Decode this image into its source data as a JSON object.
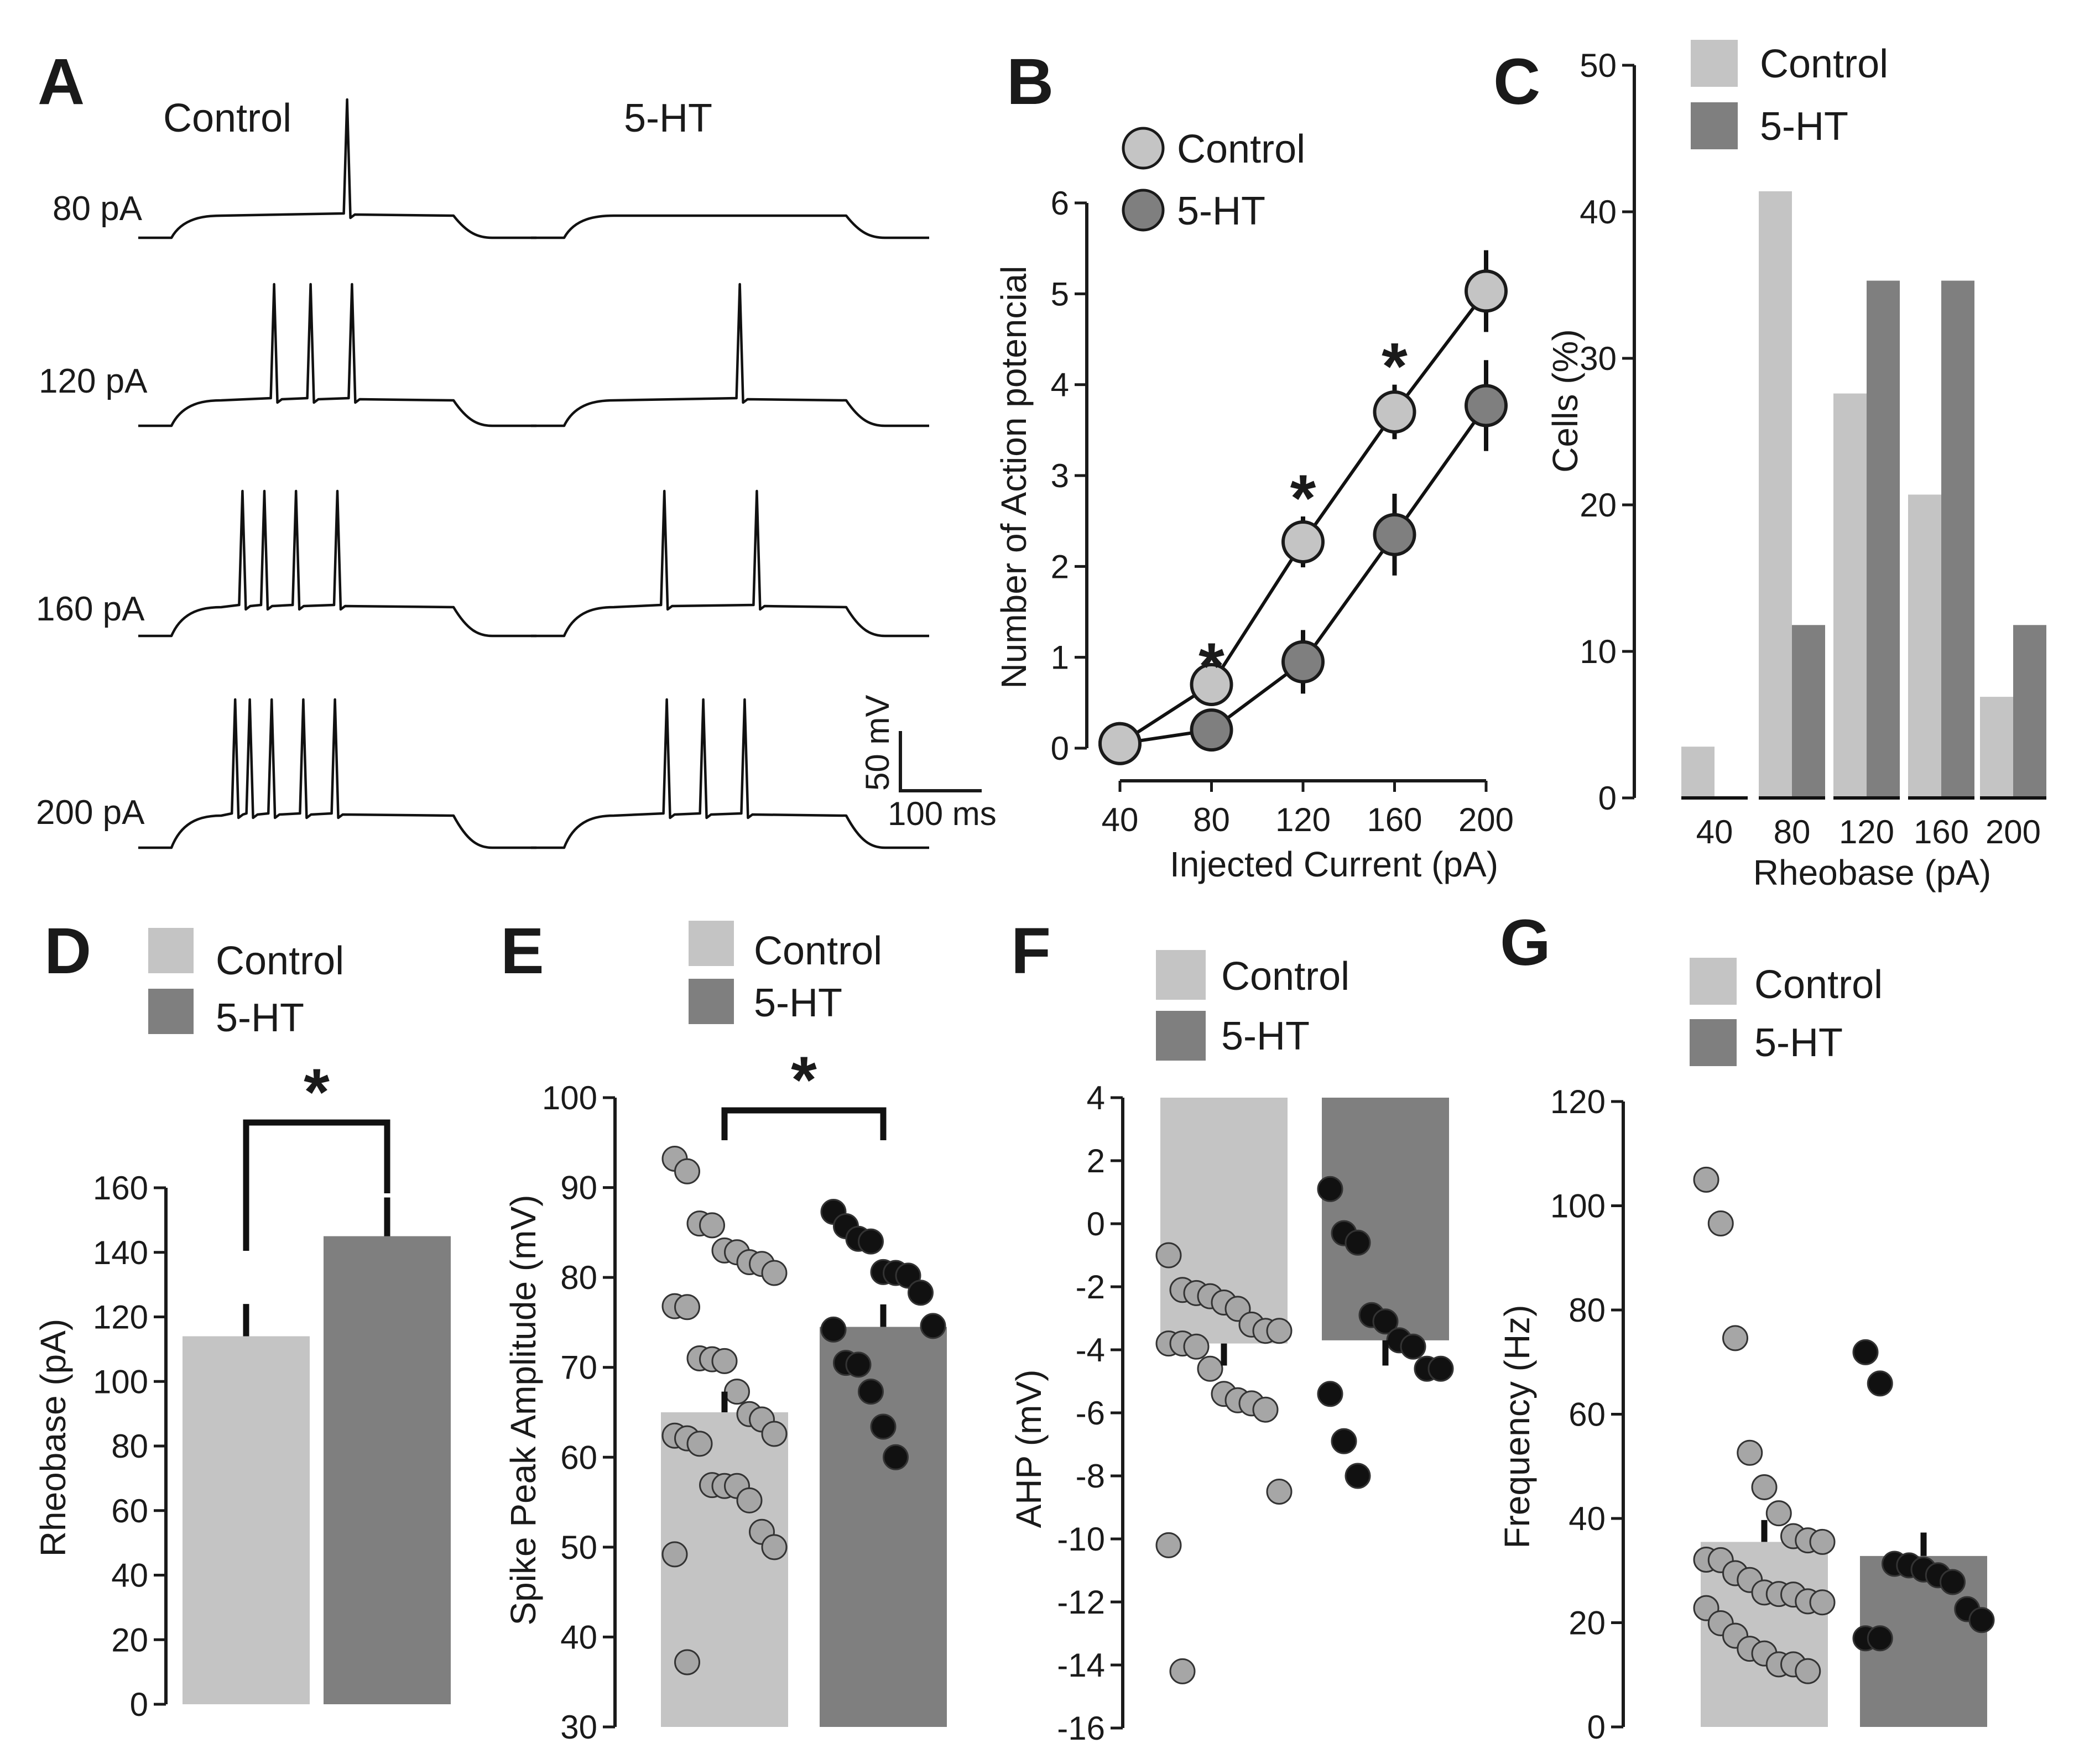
{
  "colors": {
    "control": "#c4c4c4",
    "treatment": "#7f7f7f",
    "control_dot": "#a6a6a6",
    "treatment_dot": "#111111",
    "axis": "#1a1a1a"
  },
  "legend": {
    "control": "Control",
    "treatment": "5-HT"
  },
  "chart_data": [
    {
      "panel": "A",
      "type": "traces",
      "column_titles": [
        "Control",
        "5-HT"
      ],
      "rows": [
        {
          "label": "80 pA",
          "control_spikes": 1,
          "treatment_spikes": 0
        },
        {
          "label": "120 pA",
          "control_spikes": 3,
          "treatment_spikes": 1
        },
        {
          "label": "160 pA",
          "control_spikes": 4,
          "treatment_spikes": 2
        },
        {
          "label": "200 pA",
          "control_spikes": 5,
          "treatment_spikes": 3
        }
      ],
      "scalebar": {
        "voltage": "50 mV",
        "time": "100 ms"
      }
    },
    {
      "panel": "B",
      "type": "line",
      "x": [
        40,
        80,
        120,
        160,
        200
      ],
      "xlabel": "Injected Current (pA)",
      "ylabel": "Number of Action potencial",
      "ylim": [
        0,
        6
      ],
      "yticks": [
        0,
        1,
        2,
        3,
        4,
        5,
        6
      ],
      "series": [
        {
          "name": "Control",
          "values": [
            0.05,
            0.7,
            2.27,
            3.7,
            5.03
          ],
          "errors": [
            0,
            0,
            0.28,
            0.3,
            0.45
          ]
        },
        {
          "name": "5-HT",
          "values": [
            0.05,
            0.2,
            0.95,
            2.35,
            3.77
          ],
          "errors": [
            0,
            0,
            0.35,
            0.45,
            0.5
          ]
        }
      ],
      "significant_x": [
        80,
        120,
        160
      ],
      "sig_mark": "*"
    },
    {
      "panel": "C",
      "type": "bar",
      "categories": [
        "40",
        "80",
        "120",
        "160",
        "200"
      ],
      "xlabel": "Rheobase (pA)",
      "ylabel": "Cells (%)",
      "ylim": [
        0,
        50
      ],
      "yticks": [
        0,
        10,
        20,
        30,
        40,
        50
      ],
      "series": [
        {
          "name": "Control",
          "values": [
            3.5,
            41.4,
            27.6,
            20.7,
            6.9
          ]
        },
        {
          "name": "5-HT",
          "values": [
            0,
            11.8,
            35.3,
            35.3,
            11.8
          ]
        }
      ]
    },
    {
      "panel": "D",
      "type": "bar",
      "categories": [
        "Control",
        "5-HT"
      ],
      "values": [
        114,
        145
      ],
      "errors": [
        10,
        12
      ],
      "ylabel": "Rheobase (pA)",
      "ylim": [
        0,
        160
      ],
      "yticks": [
        0,
        20,
        40,
        60,
        80,
        100,
        120,
        140,
        160
      ],
      "sig_mark": "*"
    },
    {
      "panel": "E",
      "type": "bar",
      "categories": [
        "Control",
        "5-HT"
      ],
      "values": [
        65,
        74.5
      ],
      "errors": [
        2.3,
        2.5
      ],
      "ylabel": "Spike Peak Amplitude (mV)",
      "ylim": [
        30,
        100
      ],
      "yticks": [
        30,
        40,
        50,
        60,
        70,
        80,
        90,
        100
      ],
      "sig_mark": "*",
      "points": {
        "Control": [
          93.2,
          91.8,
          86,
          85.8,
          83,
          82.8,
          81.7,
          81.5,
          80.5,
          76.8,
          76.7,
          71,
          70.9,
          70.7,
          67.3,
          64.8,
          64.2,
          62.6,
          62.4,
          62.1,
          61.5,
          56.9,
          56.8,
          56.8,
          55.2,
          51.7,
          50,
          49.2,
          37.2
        ],
        "5-HT": [
          87.3,
          85.7,
          84.3,
          84,
          80.6,
          80.5,
          80.2,
          78.3,
          74.6,
          74.2,
          70.5,
          70.3,
          67.3,
          63.4,
          60
        ]
      }
    },
    {
      "panel": "F",
      "type": "bar",
      "categories": [
        "Control",
        "5-HT"
      ],
      "values": [
        -3.8,
        -3.7
      ],
      "errors": [
        0.7,
        0.8
      ],
      "ylabel": "AHP (mV)",
      "ylim": [
        -16,
        4
      ],
      "yticks": [
        -16,
        -14,
        -12,
        -10,
        -8,
        -6,
        -4,
        -2,
        0,
        2,
        4
      ],
      "points": {
        "Control": [
          -1,
          -2.1,
          -2.2,
          -2.3,
          -2.5,
          -2.7,
          -3.2,
          -3.4,
          -3.4,
          -3.8,
          -3.8,
          -3.9,
          -4.6,
          -5.4,
          -5.6,
          -5.7,
          -5.9,
          -8.5,
          -10.2,
          -14.2
        ],
        "5-HT": [
          1.1,
          -0.3,
          -0.6,
          -2.9,
          -3.1,
          -3.7,
          -3.9,
          -4.6,
          -4.6,
          -5.4,
          -6.9,
          -8
        ]
      }
    },
    {
      "panel": "G",
      "type": "bar",
      "categories": [
        "Control",
        "5-HT"
      ],
      "values": [
        35.5,
        32.8
      ],
      "errors": [
        4.2,
        4.5
      ],
      "ylabel": "Frequency (Hz)",
      "ylim": [
        0,
        120
      ],
      "yticks": [
        0,
        20,
        40,
        60,
        80,
        100,
        120
      ],
      "points": {
        "Control": [
          105,
          96.6,
          74.6,
          52.6,
          46,
          41,
          36.6,
          35.8,
          35.5,
          32.1,
          32,
          29.5,
          28.2,
          25.8,
          25.5,
          25.4,
          24.1,
          23.9,
          22.8,
          19.9,
          17.5,
          15,
          14.1,
          12,
          12,
          10.7
        ],
        "5-HT": [
          71.9,
          65.9,
          31.3,
          31,
          30.2,
          29.1,
          27.8,
          22.6,
          20.5,
          17,
          17
        ]
      }
    }
  ]
}
